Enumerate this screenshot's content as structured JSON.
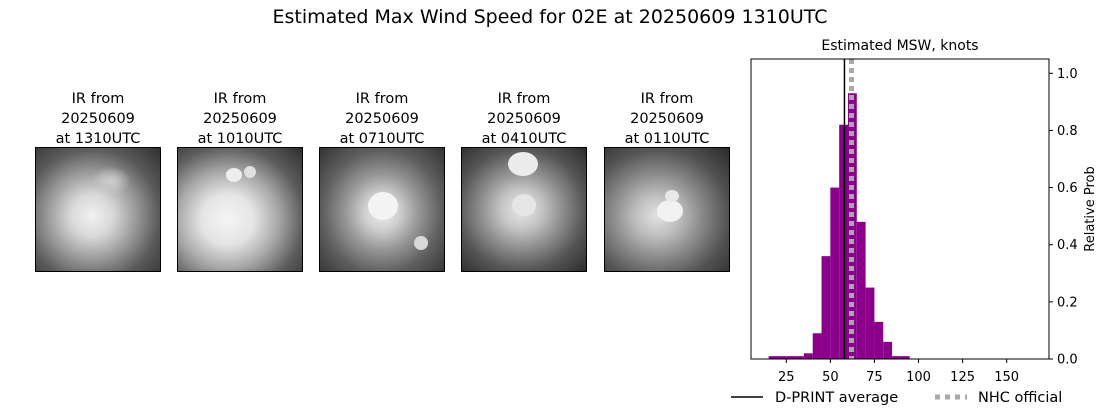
{
  "title": "Estimated Max Wind Speed for 02E at 20250609 1310UTC",
  "ir_panels": [
    {
      "line1": "IR from",
      "line2": "20250609",
      "line3": "at 1310UTC"
    },
    {
      "line1": "IR from",
      "line2": "20250609",
      "line3": "at 1010UTC"
    },
    {
      "line1": "IR from",
      "line2": "20250609",
      "line3": "at 0710UTC"
    },
    {
      "line1": "IR from",
      "line2": "20250609",
      "line3": "at 0410UTC"
    },
    {
      "line1": "IR from",
      "line2": "20250609",
      "line3": "at 0110UTC"
    }
  ],
  "chart_data": {
    "type": "bar",
    "title": "Estimated MSW, knots",
    "xlabel": "",
    "ylabel": "Relative Prob",
    "xlim": [
      5,
      174
    ],
    "ylim": [
      0,
      1.05
    ],
    "xticks": [
      25,
      50,
      75,
      100,
      125,
      150
    ],
    "yticks": [
      0.0,
      0.2,
      0.4,
      0.6,
      0.8,
      1.0
    ],
    "ytick_labels": [
      "0.0",
      "0.2",
      "0.4",
      "0.6",
      "0.8",
      "1.0"
    ],
    "y_axis_side": "right",
    "bar_color": "#8b008b",
    "bin_width": 5,
    "bins": [
      {
        "x0": 15,
        "value": 0.01
      },
      {
        "x0": 20,
        "value": 0.01
      },
      {
        "x0": 25,
        "value": 0.01
      },
      {
        "x0": 30,
        "value": 0.01
      },
      {
        "x0": 35,
        "value": 0.02
      },
      {
        "x0": 40,
        "value": 0.09
      },
      {
        "x0": 45,
        "value": 0.36
      },
      {
        "x0": 50,
        "value": 0.6
      },
      {
        "x0": 55,
        "value": 0.82
      },
      {
        "x0": 60,
        "value": 0.93
      },
      {
        "x0": 65,
        "value": 0.48
      },
      {
        "x0": 70,
        "value": 0.25
      },
      {
        "x0": 75,
        "value": 0.13
      },
      {
        "x0": 80,
        "value": 0.06
      },
      {
        "x0": 85,
        "value": 0.01
      },
      {
        "x0": 90,
        "value": 0.01
      },
      {
        "x0": 95,
        "value": 0.0
      },
      {
        "x0": 100,
        "value": 0.0
      },
      {
        "x0": 105,
        "value": 0.0
      },
      {
        "x0": 110,
        "value": 0.0
      },
      {
        "x0": 115,
        "value": 0.0
      },
      {
        "x0": 120,
        "value": 0.0
      },
      {
        "x0": 125,
        "value": 0.0
      },
      {
        "x0": 130,
        "value": 0.0
      },
      {
        "x0": 135,
        "value": 0.0
      },
      {
        "x0": 140,
        "value": 0.0
      },
      {
        "x0": 145,
        "value": 0.0
      },
      {
        "x0": 150,
        "value": 0.0
      },
      {
        "x0": 155,
        "value": 0.0
      },
      {
        "x0": 160,
        "value": 0.0
      },
      {
        "x0": 165,
        "value": 0.0
      }
    ],
    "dprint_average": 58,
    "nhc_official": 62,
    "dprint_color": "#000000",
    "nhc_color": "#a9a9a9",
    "legend": [
      {
        "label": "D-PRINT average",
        "style": "solid"
      },
      {
        "label": "NHC official",
        "style": "dotted"
      }
    ],
    "legend_position": "bottom"
  }
}
